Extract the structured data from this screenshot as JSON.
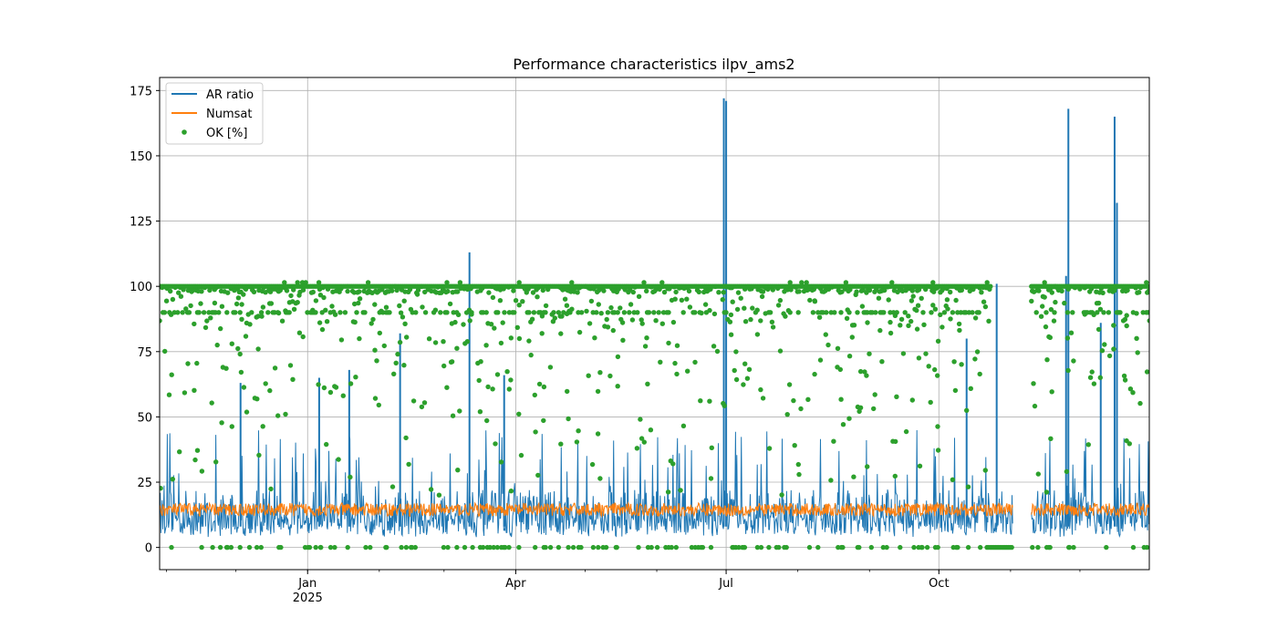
{
  "chart_data": {
    "type": "line",
    "title": "Performance characteristics ilpv_ams2",
    "xlabel": "",
    "ylabel": "",
    "x_axis": {
      "kind": "date",
      "range": [
        "2024-10-29",
        "2025-12-31"
      ],
      "ticks": [
        {
          "date": "2025-01-01",
          "label": "Jan",
          "sublabel": "2025"
        },
        {
          "date": "2025-04-01",
          "label": "Apr",
          "sublabel": ""
        },
        {
          "date": "2025-07-01",
          "label": "Jul",
          "sublabel": ""
        },
        {
          "date": "2025-10-01",
          "label": "Oct",
          "sublabel": ""
        }
      ],
      "minor_ticks_monthly": true
    },
    "ylim": [
      -8.5,
      180
    ],
    "yticks": [
      0,
      25,
      50,
      75,
      100,
      125,
      150,
      175
    ],
    "grid": true,
    "legend": {
      "position": "upper-left"
    },
    "gap": [
      "2025-11-02",
      "2025-11-10"
    ],
    "series": [
      {
        "name": "AR ratio",
        "kind": "line",
        "color": "#1f77b4",
        "baseline_range": [
          5,
          15
        ],
        "typical_spike_range": [
          20,
          45
        ],
        "spikes": [
          {
            "date": "2025-03-12",
            "value": 113
          },
          {
            "date": "2025-06-30",
            "value": 172
          },
          {
            "date": "2025-07-01",
            "value": 171
          },
          {
            "date": "2025-10-26",
            "value": 101
          },
          {
            "date": "2025-11-26",
            "value": 168
          },
          {
            "date": "2025-11-25",
            "value": 104
          },
          {
            "date": "2025-12-16",
            "value": 165
          },
          {
            "date": "2025-12-17",
            "value": 132
          },
          {
            "date": "2025-02-10",
            "value": 82
          },
          {
            "date": "2025-10-13",
            "value": 80
          },
          {
            "date": "2025-12-10",
            "value": 86
          },
          {
            "date": "2025-03-27",
            "value": 66
          },
          {
            "date": "2024-12-03",
            "value": 63
          },
          {
            "date": "2025-01-19",
            "value": 68
          },
          {
            "date": "2025-01-06",
            "value": 65
          }
        ]
      },
      {
        "name": "Numsat",
        "kind": "line",
        "color": "#ff7f0e",
        "baseline_range": [
          12,
          17
        ]
      },
      {
        "name": "OK [%]",
        "kind": "scatter",
        "color": "#2ca02c",
        "dominant_value": 100,
        "secondary_levels": [
          97.5,
          90,
          0
        ],
        "outage_value": 0,
        "outage_range": [
          "2025-10-23",
          "2025-11-02"
        ]
      }
    ]
  }
}
